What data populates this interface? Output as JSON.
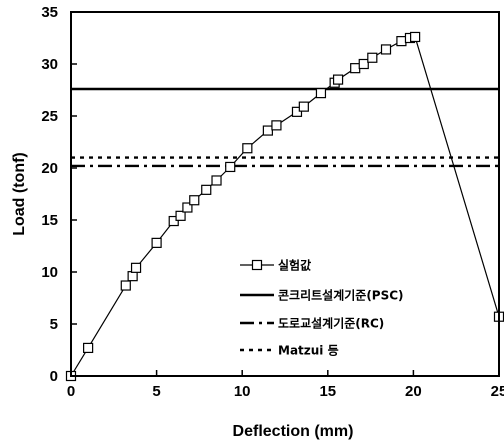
{
  "chart_data": {
    "type": "line",
    "title": "",
    "xlabel": "Deflection (mm)",
    "ylabel": "Load (tonf)",
    "xlim": [
      0,
      25
    ],
    "ylim": [
      0,
      35
    ],
    "xticks": [
      "0",
      "5",
      "10",
      "15",
      "20",
      "25"
    ],
    "yticks": [
      "0",
      "5",
      "10",
      "15",
      "20",
      "25",
      "30",
      "35"
    ],
    "grid": false,
    "legend_position": "lower-right",
    "series": [
      {
        "name": "실험값",
        "style": "solid-line-square-markers",
        "color": "#000000",
        "x": [
          0,
          1.0,
          3.2,
          3.6,
          3.8,
          5.0,
          6.0,
          6.4,
          6.8,
          7.2,
          7.9,
          8.5,
          9.3,
          10.3,
          11.5,
          12.0,
          13.2,
          13.6,
          14.6,
          15.4,
          15.6,
          16.6,
          17.1,
          17.6,
          18.4,
          19.3,
          19.8,
          20.1,
          25.0
        ],
        "y": [
          0,
          2.7,
          8.7,
          9.6,
          10.4,
          12.8,
          14.9,
          15.4,
          16.2,
          16.9,
          17.9,
          18.8,
          20.1,
          21.9,
          23.6,
          24.1,
          25.4,
          25.9,
          27.2,
          28.2,
          28.5,
          29.6,
          30.0,
          30.6,
          31.4,
          32.2,
          32.5,
          32.6,
          5.7
        ]
      },
      {
        "name": "콘크리트설계기준(PSC)",
        "style": "solid",
        "color": "#000000",
        "x": [
          0,
          25
        ],
        "y": [
          27.6,
          27.6
        ]
      },
      {
        "name": "도로교설계기준(RC)",
        "style": "dash-dot",
        "color": "#000000",
        "x": [
          0,
          25
        ],
        "y": [
          20.2,
          20.2
        ]
      },
      {
        "name": "Matzui 등",
        "style": "dotted",
        "color": "#000000",
        "x": [
          0,
          25
        ],
        "y": [
          21.0,
          21.0
        ]
      }
    ]
  }
}
